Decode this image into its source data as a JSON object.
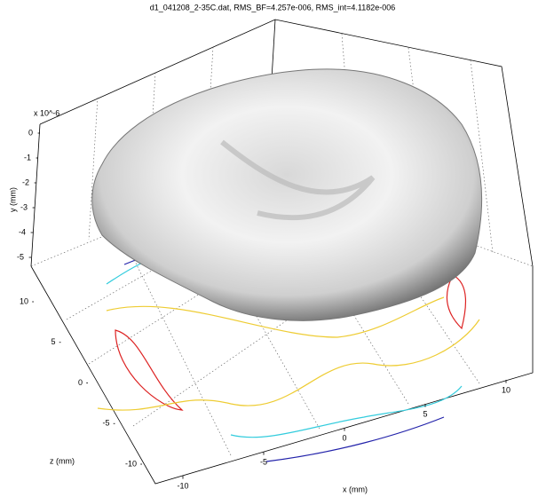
{
  "chart_data": {
    "type": "surface3d",
    "title": "d1_041208_2-35C.dat, RMS_BF=4.257e-006, RMS_int=4.1182e-006",
    "x_label": "x (mm)",
    "y_label": "y (mm)",
    "z_label": "z (mm)",
    "y_exponent": "x 10^-6",
    "xlim": [
      -10,
      10
    ],
    "xticks": [
      -10,
      -5,
      0,
      5,
      10
    ],
    "ylim": [
      -5,
      0
    ],
    "yticks": [
      0,
      -1,
      -2,
      -3,
      -4,
      -5
    ],
    "zlim": [
      -10,
      10
    ],
    "zticks": [
      10,
      5,
      0,
      -5,
      -10
    ],
    "grid": true
  }
}
